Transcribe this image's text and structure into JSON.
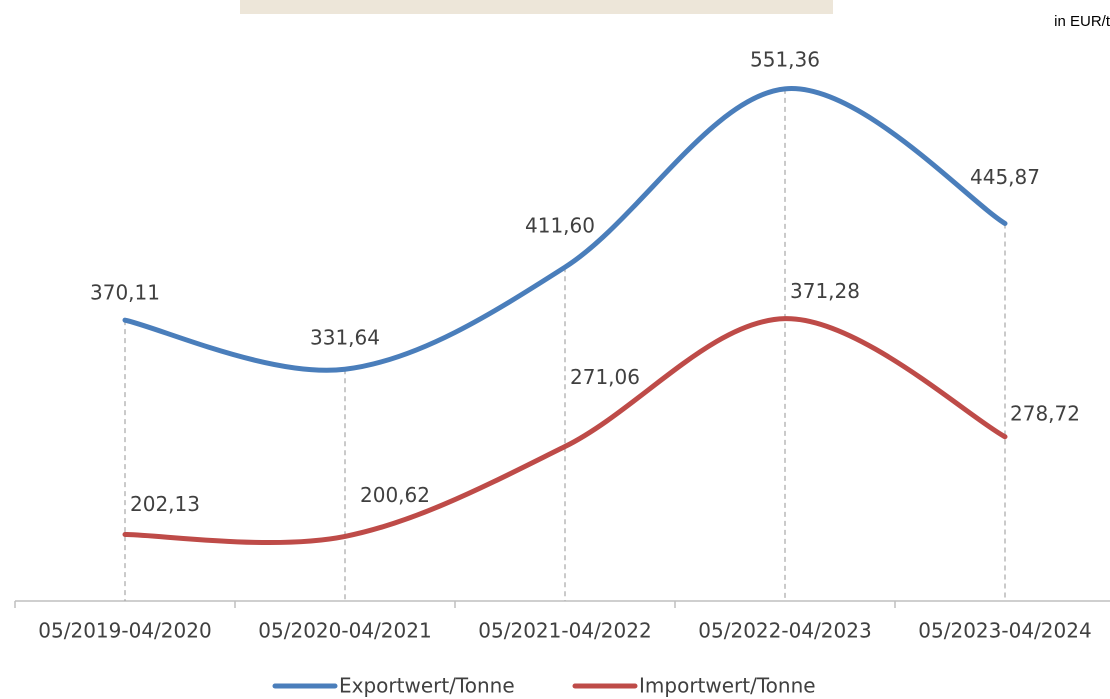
{
  "chart_data": {
    "type": "line",
    "unit": "in EUR/t",
    "categories": [
      "05/2019-04/2020",
      "05/2020-04/2021",
      "05/2021-04/2022",
      "05/2022-04/2023",
      "05/2023-04/2024"
    ],
    "series": [
      {
        "name": "Exportwert/Tonne",
        "color": "#4a7ebb",
        "values": [
          370.11,
          331.64,
          411.6,
          551.36,
          445.87
        ],
        "value_labels": [
          "370,11",
          "331,64",
          "411,60",
          "551,36",
          "445,87"
        ]
      },
      {
        "name": "Importwert/Tonne",
        "color": "#be4b48",
        "values": [
          202.13,
          200.62,
          271.06,
          371.28,
          278.72
        ],
        "value_labels": [
          "202,13",
          "200,62",
          "271,06",
          "371,28",
          "278,72"
        ]
      }
    ],
    "ylim": [
      150,
      621
    ],
    "smooth": true
  }
}
